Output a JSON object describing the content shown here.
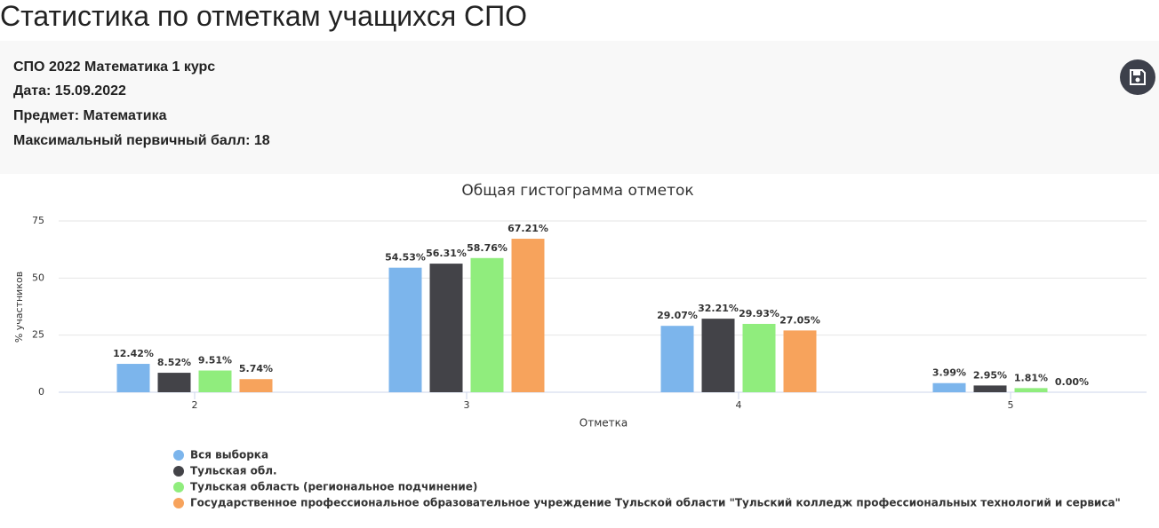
{
  "header": {
    "title": "Статистика по отметкам учащихся СПО",
    "lines": [
      "СПО 2022 Математика 1 курс",
      "Дата: 15.09.2022",
      "Предмет: Математика",
      "Максимальный первичный балл: 18"
    ]
  },
  "chart_data": {
    "type": "bar",
    "title": "Общая гистограмма отметок",
    "x_label": "Отметка",
    "y_label": "% участников",
    "categories": [
      "2",
      "3",
      "4",
      "5"
    ],
    "series": [
      {
        "name": "Вся выборка",
        "color": "#7cb5ec",
        "values": [
          12.42,
          54.53,
          29.07,
          3.99
        ],
        "value_labels": [
          "12.42%",
          "54.53%",
          "29.07%",
          "3.99%"
        ]
      },
      {
        "name": "Тульская обл.",
        "color": "#434348",
        "values": [
          8.52,
          56.31,
          32.21,
          2.95
        ],
        "value_labels": [
          "8.52%",
          "56.31%",
          "32.21%",
          "2.95%"
        ]
      },
      {
        "name": "Тульская область (региональное подчинение)",
        "color": "#90ed7d",
        "values": [
          9.51,
          58.76,
          29.93,
          1.81
        ],
        "value_labels": [
          "9.51%",
          "58.76%",
          "29.93%",
          "1.81%"
        ]
      },
      {
        "name": "Государственное профессиональное образовательное учреждение Тульской области \"Тульский колледж профессиональных технологий и сервиса\"",
        "color": "#f7a35c",
        "values": [
          5.74,
          67.21,
          27.05,
          0
        ],
        "value_labels": [
          "5.74%",
          "67.21%",
          "27.05%",
          "0.00%"
        ]
      }
    ],
    "ylim": [
      0,
      75
    ],
    "yticks": [
      0,
      25,
      50,
      75
    ],
    "grid": true
  }
}
